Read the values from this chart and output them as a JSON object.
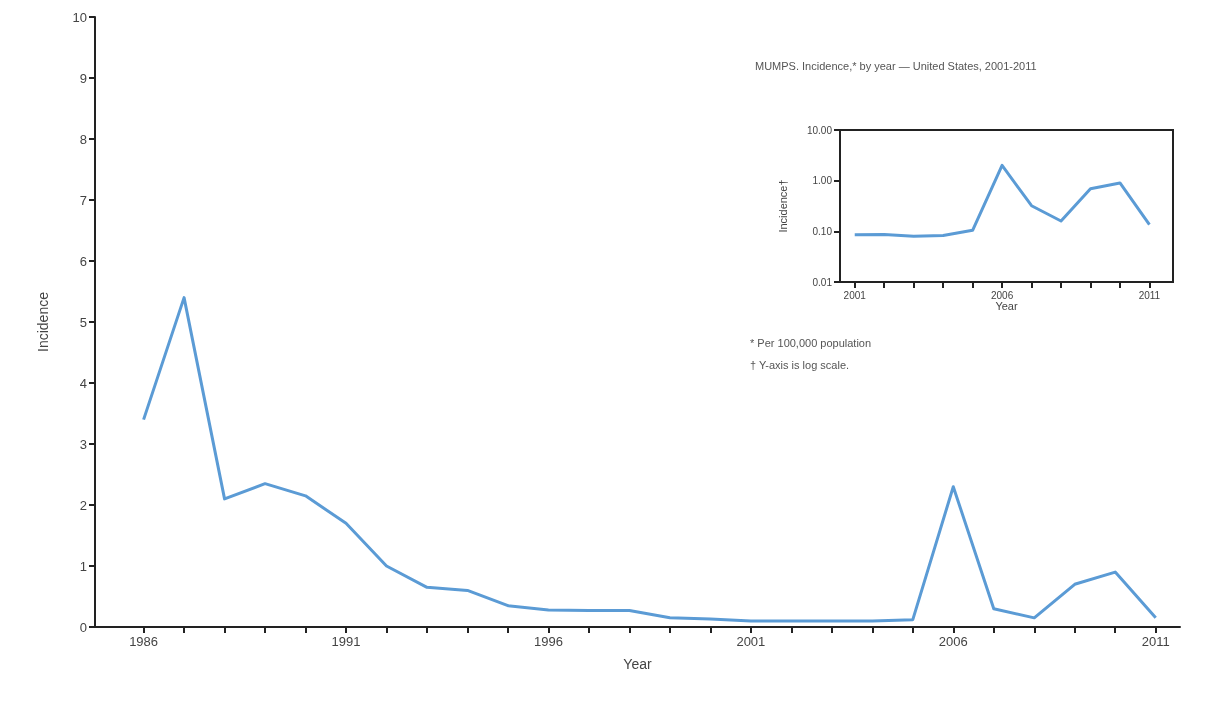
{
  "chart_data": [
    {
      "type": "line",
      "xlabel": "Year",
      "ylabel": "Incidence",
      "x": [
        1986,
        1987,
        1988,
        1989,
        1990,
        1991,
        1992,
        1993,
        1994,
        1995,
        1996,
        1997,
        1998,
        1999,
        2000,
        2001,
        2002,
        2003,
        2004,
        2005,
        2006,
        2007,
        2008,
        2009,
        2010,
        2011
      ],
      "series": [
        {
          "color": "#5b9bd5",
          "values": [
            3.4,
            5.4,
            2.1,
            2.35,
            2.15,
            1.7,
            1.0,
            0.65,
            0.6,
            0.35,
            0.28,
            0.27,
            0.27,
            0.15,
            0.13,
            0.1,
            0.1,
            0.1,
            0.1,
            0.12,
            2.3,
            0.3,
            0.15,
            0.7,
            0.9,
            0.15
          ]
        }
      ],
      "xlim": [
        1984.8,
        2011.6
      ],
      "xticks": [
        1986,
        {
          "value": 1987,
          "label": null
        },
        {
          "value": 1988,
          "label": null
        },
        {
          "value": 1989,
          "label": null
        },
        {
          "value": 1990,
          "label": null
        },
        1991,
        {
          "value": 1992,
          "label": null
        },
        {
          "value": 1993,
          "label": null
        },
        {
          "value": 1994,
          "label": null
        },
        {
          "value": 1995,
          "label": null
        },
        1996,
        {
          "value": 1997,
          "label": null
        },
        {
          "value": 1998,
          "label": null
        },
        {
          "value": 1999,
          "label": null
        },
        {
          "value": 2000,
          "label": null
        },
        2001,
        {
          "value": 2002,
          "label": null
        },
        {
          "value": 2003,
          "label": null
        },
        {
          "value": 2004,
          "label": null
        },
        {
          "value": 2005,
          "label": null
        },
        2006,
        {
          "value": 2007,
          "label": null
        },
        {
          "value": 2008,
          "label": null
        },
        {
          "value": 2009,
          "label": null
        },
        {
          "value": 2010,
          "label": null
        },
        2011
      ],
      "ylim": [
        0,
        10
      ],
      "yticks": [
        0,
        1,
        2,
        3,
        4,
        5,
        6,
        7,
        8,
        9,
        10
      ],
      "grid": false,
      "marker": "none",
      "line_style": "solid"
    },
    {
      "type": "line",
      "title": "MUMPS. Incidence,* by year — United States, 2001-2011",
      "xlabel": "Year",
      "ylabel": "Incidence†",
      "x": [
        2001,
        2002,
        2003,
        2004,
        2005,
        2006,
        2007,
        2008,
        2009,
        2010,
        2011
      ],
      "series": [
        {
          "color": "#5b9bd5",
          "values": [
            0.086,
            0.087,
            0.08,
            0.083,
            0.105,
            2.0,
            0.32,
            0.16,
            0.69,
            0.9,
            0.135
          ]
        }
      ],
      "log": "y",
      "xlim": [
        2000.5,
        2011.8
      ],
      "xticks": [
        2001,
        {
          "value": 2002,
          "label": null
        },
        {
          "value": 2003,
          "label": null
        },
        {
          "value": 2004,
          "label": null
        },
        {
          "value": 2005,
          "label": null
        },
        2006,
        {
          "value": 2007,
          "label": null
        },
        {
          "value": 2008,
          "label": null
        },
        {
          "value": 2009,
          "label": null
        },
        {
          "value": 2010,
          "label": null
        },
        2011
      ],
      "ylim": [
        0.01,
        10
      ],
      "yticks": [
        {
          "value": 0.01,
          "label": "0.01"
        },
        {
          "value": 0.1,
          "label": "0.10"
        },
        {
          "value": 1,
          "label": "1.00"
        },
        {
          "value": 10,
          "label": "10.00"
        }
      ],
      "annotations": [
        "* Per 100,000 population",
        "† Y-axis is log scale."
      ],
      "grid": false,
      "marker": "none",
      "line_style": "solid"
    }
  ]
}
